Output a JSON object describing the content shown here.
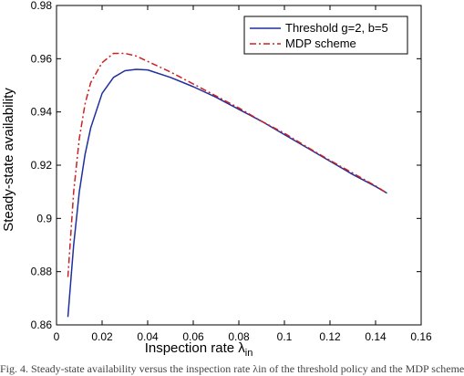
{
  "chart_data": {
    "type": "line",
    "xlabel_main": "Inspection rate λ",
    "xlabel_sub": "in",
    "ylabel": "Steady-state availability",
    "xlim": [
      0,
      0.16
    ],
    "ylim": [
      0.86,
      0.98
    ],
    "xticks": [
      0,
      0.02,
      0.04,
      0.06,
      0.08,
      0.1,
      0.12,
      0.14,
      0.16
    ],
    "xtick_labels": [
      "0",
      "0.02",
      "0.04",
      "0.06",
      "0.08",
      "0.1",
      "0.12",
      "0.14",
      "0.16"
    ],
    "yticks": [
      0.86,
      0.88,
      0.9,
      0.92,
      0.94,
      0.96,
      0.98
    ],
    "ytick_labels": [
      "0.86",
      "0.88",
      "0.9",
      "0.92",
      "0.94",
      "0.96",
      "0.98"
    ],
    "grid": false,
    "legend_position": "top-right",
    "series": [
      {
        "name": "Threshold g=2, b=5",
        "color": "#1f2f9f",
        "style": "solid",
        "x": [
          0.005,
          0.0075,
          0.01,
          0.0125,
          0.015,
          0.02,
          0.025,
          0.03,
          0.035,
          0.04,
          0.05,
          0.06,
          0.07,
          0.08,
          0.09,
          0.1,
          0.11,
          0.12,
          0.13,
          0.14,
          0.145
        ],
        "y": [
          0.863,
          0.89,
          0.91,
          0.924,
          0.934,
          0.947,
          0.953,
          0.9555,
          0.956,
          0.9558,
          0.953,
          0.9495,
          0.9455,
          0.941,
          0.9365,
          0.9315,
          0.9265,
          0.9215,
          0.9165,
          0.912,
          0.9095
        ]
      },
      {
        "name": "MDP scheme",
        "color": "#cc2222",
        "style": "dashdot",
        "x": [
          0.005,
          0.0075,
          0.01,
          0.0125,
          0.015,
          0.02,
          0.025,
          0.03,
          0.035,
          0.04,
          0.05,
          0.06,
          0.07,
          0.08,
          0.09,
          0.1,
          0.11,
          0.12,
          0.13,
          0.14,
          0.145
        ],
        "y": [
          0.878,
          0.91,
          0.93,
          0.943,
          0.951,
          0.9585,
          0.962,
          0.962,
          0.961,
          0.959,
          0.955,
          0.9505,
          0.946,
          0.9415,
          0.9365,
          0.932,
          0.9268,
          0.9218,
          0.917,
          0.9122,
          0.9095
        ]
      }
    ]
  },
  "caption": "Fig. 4. Steady-state availability versus the inspection rate λin of the threshold policy and the MDP scheme"
}
